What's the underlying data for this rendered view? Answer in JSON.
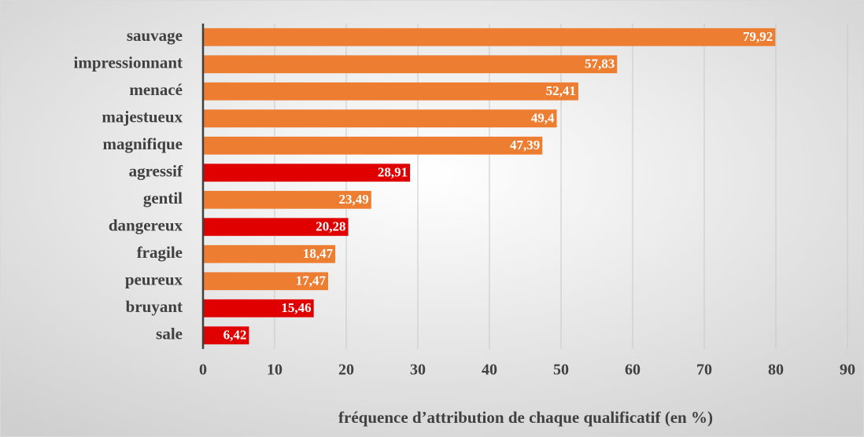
{
  "chart_data": {
    "type": "barh",
    "categories": [
      "sauvage",
      "impressionnant",
      "menacé",
      "majestueux",
      "magnifique",
      "agressif",
      "gentil",
      "dangereux",
      "fragile",
      "peureux",
      "bruyant",
      "sale"
    ],
    "values": [
      79.92,
      57.83,
      52.41,
      49.4,
      47.39,
      28.91,
      23.49,
      20.28,
      18.47,
      17.47,
      15.46,
      6.42
    ],
    "value_labels": [
      "79,92",
      "57,83",
      "52,41",
      "49,4",
      "47,39",
      "28,91",
      "23,49",
      "20,28",
      "18,47",
      "17,47",
      "15,46",
      "6,42"
    ],
    "colors": [
      "#ed7d31",
      "#ed7d31",
      "#ed7d31",
      "#ed7d31",
      "#ed7d31",
      "#e00000",
      "#ed7d31",
      "#e00000",
      "#ed7d31",
      "#ed7d31",
      "#e00000",
      "#e00000"
    ],
    "xlabel": "fréquence d’attribution de chaque qualificatif (en %)",
    "xlim": [
      0,
      90
    ],
    "xticks": [
      0,
      10,
      20,
      30,
      40,
      50,
      60,
      70,
      80,
      90
    ],
    "grid": true
  }
}
